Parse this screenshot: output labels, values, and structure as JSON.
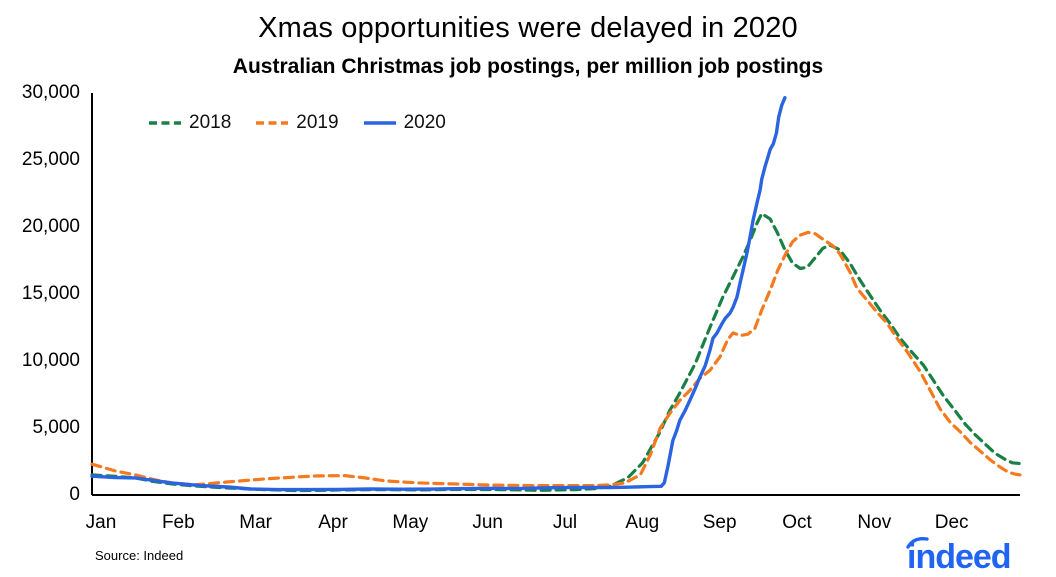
{
  "chart_data": {
    "type": "line",
    "title": "Xmas opportunities were delayed in 2020",
    "subtitle": "Australian Christmas job postings, per million job postings",
    "source": "Source: Indeed",
    "logo_text": "indeed",
    "logo_color": "#2164f3",
    "axis_color": "#000000",
    "x_unit": "months (0 = Jan 1, fractional months through the year)",
    "xlim": [
      0,
      12
    ],
    "ylim": [
      0,
      30000
    ],
    "grid": false,
    "legend_position": "top-left",
    "y_ticks": [
      {
        "value": 0,
        "label": "0"
      },
      {
        "value": 5000,
        "label": "5,000"
      },
      {
        "value": 10000,
        "label": "10,000"
      },
      {
        "value": 15000,
        "label": "15,000"
      },
      {
        "value": 20000,
        "label": "20,000"
      },
      {
        "value": 25000,
        "label": "25,000"
      },
      {
        "value": 30000,
        "label": "30,000"
      }
    ],
    "x_tick_labels": [
      "Jan",
      "Feb",
      "Mar",
      "Apr",
      "May",
      "Jun",
      "Jul",
      "Aug",
      "Sep",
      "Oct",
      "Nov",
      "Dec"
    ],
    "series": [
      {
        "name": "2018",
        "color": "#1b8045",
        "style": "dashed",
        "points": [
          [
            0,
            1500
          ],
          [
            0.28,
            1400
          ],
          [
            0.56,
            1275
          ],
          [
            0.8,
            1000
          ],
          [
            1.03,
            825
          ],
          [
            1.33,
            675
          ],
          [
            1.76,
            525
          ],
          [
            2.05,
            450
          ],
          [
            2.24,
            400
          ],
          [
            2.66,
            330
          ],
          [
            3.0,
            350
          ],
          [
            3.2,
            380
          ],
          [
            3.72,
            400
          ],
          [
            4.24,
            380
          ],
          [
            4.76,
            420
          ],
          [
            5.28,
            400
          ],
          [
            5.79,
            350
          ],
          [
            6.25,
            400
          ],
          [
            6.5,
            480
          ],
          [
            6.7,
            650
          ],
          [
            6.93,
            1300
          ],
          [
            7.12,
            2400
          ],
          [
            7.34,
            4650
          ],
          [
            7.47,
            6300
          ],
          [
            7.6,
            7600
          ],
          [
            7.8,
            9800
          ],
          [
            7.99,
            12500
          ],
          [
            8.16,
            14800
          ],
          [
            8.29,
            16300
          ],
          [
            8.42,
            17800
          ],
          [
            8.51,
            19000
          ],
          [
            8.6,
            20300
          ],
          [
            8.66,
            21000
          ],
          [
            8.77,
            20600
          ],
          [
            8.86,
            19600
          ],
          [
            8.96,
            18300
          ],
          [
            9.06,
            17300
          ],
          [
            9.16,
            16900
          ],
          [
            9.25,
            17000
          ],
          [
            9.35,
            17700
          ],
          [
            9.45,
            18400
          ],
          [
            9.54,
            18650
          ],
          [
            9.67,
            18300
          ],
          [
            9.8,
            17300
          ],
          [
            9.93,
            16050
          ],
          [
            10.06,
            14900
          ],
          [
            10.19,
            13800
          ],
          [
            10.32,
            12800
          ],
          [
            10.45,
            11700
          ],
          [
            10.58,
            10800
          ],
          [
            10.75,
            9700
          ],
          [
            10.88,
            8550
          ],
          [
            11.01,
            7400
          ],
          [
            11.16,
            6300
          ],
          [
            11.29,
            5300
          ],
          [
            11.42,
            4500
          ],
          [
            11.55,
            3800
          ],
          [
            11.68,
            3100
          ],
          [
            11.81,
            2650
          ],
          [
            11.9,
            2400
          ],
          [
            12,
            2350
          ]
        ]
      },
      {
        "name": "2019",
        "color": "#f5791f",
        "style": "dashed",
        "points": [
          [
            0,
            2300
          ],
          [
            0.3,
            1800
          ],
          [
            0.56,
            1500
          ],
          [
            0.8,
            1150
          ],
          [
            1.03,
            900
          ],
          [
            1.33,
            750
          ],
          [
            1.76,
            975
          ],
          [
            2.24,
            1200
          ],
          [
            2.66,
            1350
          ],
          [
            2.92,
            1425
          ],
          [
            3.27,
            1450
          ],
          [
            3.53,
            1275
          ],
          [
            3.79,
            1050
          ],
          [
            4.22,
            900
          ],
          [
            4.66,
            825
          ],
          [
            5.08,
            750
          ],
          [
            5.64,
            700
          ],
          [
            6.08,
            700
          ],
          [
            6.44,
            700
          ],
          [
            6.7,
            750
          ],
          [
            6.89,
            900
          ],
          [
            7.09,
            1500
          ],
          [
            7.22,
            3000
          ],
          [
            7.35,
            5025
          ],
          [
            7.47,
            6075
          ],
          [
            7.6,
            7050
          ],
          [
            7.73,
            7800
          ],
          [
            7.86,
            8700
          ],
          [
            7.99,
            9300
          ],
          [
            8.12,
            10300
          ],
          [
            8.22,
            11600
          ],
          [
            8.29,
            12100
          ],
          [
            8.38,
            11900
          ],
          [
            8.48,
            12000
          ],
          [
            8.57,
            12400
          ],
          [
            8.66,
            13800
          ],
          [
            8.77,
            15300
          ],
          [
            8.87,
            16800
          ],
          [
            8.97,
            18000
          ],
          [
            9.06,
            18900
          ],
          [
            9.16,
            19400
          ],
          [
            9.26,
            19600
          ],
          [
            9.35,
            19500
          ],
          [
            9.45,
            19100
          ],
          [
            9.58,
            18600
          ],
          [
            9.67,
            18000
          ],
          [
            9.8,
            16650
          ],
          [
            9.89,
            15450
          ],
          [
            10.02,
            14550
          ],
          [
            10.15,
            13650
          ],
          [
            10.28,
            12825
          ],
          [
            10.41,
            11700
          ],
          [
            10.54,
            10700
          ],
          [
            10.71,
            9200
          ],
          [
            10.84,
            7800
          ],
          [
            10.97,
            6400
          ],
          [
            11.1,
            5400
          ],
          [
            11.23,
            4700
          ],
          [
            11.36,
            3900
          ],
          [
            11.49,
            3250
          ],
          [
            11.62,
            2600
          ],
          [
            11.75,
            2050
          ],
          [
            11.85,
            1700
          ],
          [
            11.94,
            1550
          ],
          [
            12,
            1500
          ]
        ]
      },
      {
        "name": "2020",
        "color": "#2a64e0",
        "style": "solid",
        "points": [
          [
            0,
            1400
          ],
          [
            0.3,
            1300
          ],
          [
            0.56,
            1275
          ],
          [
            1.03,
            900
          ],
          [
            1.4,
            700
          ],
          [
            1.76,
            600
          ],
          [
            2.05,
            450
          ],
          [
            2.4,
            400
          ],
          [
            2.8,
            400
          ],
          [
            3.2,
            420
          ],
          [
            3.6,
            450
          ],
          [
            4.0,
            430
          ],
          [
            4.4,
            440
          ],
          [
            4.8,
            480
          ],
          [
            5.2,
            500
          ],
          [
            5.5,
            480
          ],
          [
            5.8,
            530
          ],
          [
            6.1,
            550
          ],
          [
            6.44,
            560
          ],
          [
            6.7,
            560
          ],
          [
            6.93,
            580
          ],
          [
            7.15,
            620
          ],
          [
            7.36,
            650
          ],
          [
            7.4,
            900
          ],
          [
            7.45,
            2200
          ],
          [
            7.51,
            4050
          ],
          [
            7.56,
            4800
          ],
          [
            7.6,
            5550
          ],
          [
            7.67,
            6300
          ],
          [
            7.73,
            7050
          ],
          [
            7.8,
            7950
          ],
          [
            7.86,
            8775
          ],
          [
            7.93,
            9675
          ],
          [
            7.99,
            10800
          ],
          [
            8.03,
            11700
          ],
          [
            8.08,
            12075
          ],
          [
            8.15,
            12825
          ],
          [
            8.19,
            13200
          ],
          [
            8.25,
            13575
          ],
          [
            8.29,
            14025
          ],
          [
            8.34,
            14775
          ],
          [
            8.38,
            15825
          ],
          [
            8.42,
            16800
          ],
          [
            8.47,
            18075
          ],
          [
            8.51,
            19275
          ],
          [
            8.55,
            20550
          ],
          [
            8.6,
            21825
          ],
          [
            8.64,
            22800
          ],
          [
            8.66,
            23550
          ],
          [
            8.7,
            24450
          ],
          [
            8.74,
            25200
          ],
          [
            8.77,
            25800
          ],
          [
            8.81,
            26200
          ],
          [
            8.85,
            27000
          ],
          [
            8.88,
            28200
          ],
          [
            8.92,
            29100
          ],
          [
            8.96,
            29650
          ]
        ]
      }
    ]
  }
}
